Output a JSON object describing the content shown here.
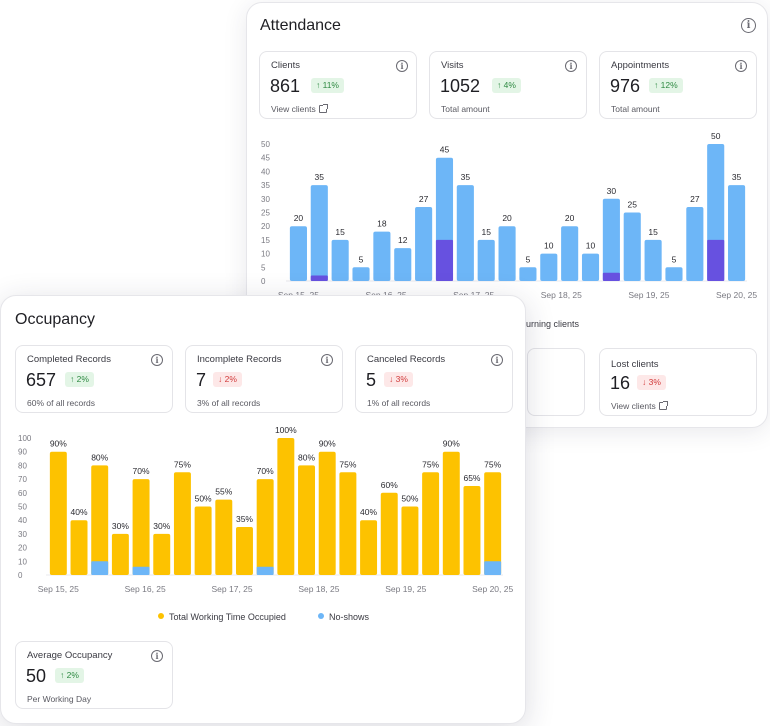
{
  "colors": {
    "attendance_bar": "#6db6f7",
    "attendance_highlight": "#6751e0",
    "occupancy_bar": "#fdc200",
    "noshow_bar": "#6db6f7",
    "badge_up": "#2f8a43",
    "badge_down": "#d23c3c"
  },
  "attendance": {
    "title": "Attendance",
    "cards": [
      {
        "label": "Clients",
        "value": "861",
        "badge": "↑ 11%",
        "sub": "View clients"
      },
      {
        "label": "Visits",
        "value": "1052",
        "badge": "↑ 4%",
        "sub": "Total amount"
      },
      {
        "label": "Appointments",
        "value": "976",
        "badge": "↑ 12%",
        "sub": "Total amount"
      }
    ],
    "legend_partial": "urning clients",
    "lost_card": {
      "label": "Lost clients",
      "value": "16",
      "badge": "↓ 3%",
      "sub": "View clients"
    }
  },
  "occupancy": {
    "title": "Occupancy",
    "cards": [
      {
        "label": "Completed Records",
        "value": "657",
        "badge": "↑ 2%",
        "sub": "60% of all records"
      },
      {
        "label": "Incomplete Records",
        "value": "7",
        "badge": "↓ 2%",
        "sub": "3% of all records"
      },
      {
        "label": "Canceled Records",
        "value": "5",
        "badge": "↓ 3%",
        "sub": "1% of all records"
      }
    ],
    "legend": [
      {
        "label": "Total Working Time Occupied"
      },
      {
        "label": "No-shows"
      }
    ],
    "avg_card": {
      "label": "Average Occupancy",
      "value": "50",
      "badge": "↑ 2%",
      "sub": "Per Working Day"
    }
  },
  "chart_data": [
    {
      "type": "bar",
      "name": "attendance",
      "ylim": [
        0,
        50
      ],
      "yticks": [
        0,
        5,
        10,
        15,
        20,
        25,
        30,
        35,
        40,
        45,
        50
      ],
      "xticks": [
        "Sep 15, 25",
        "Sep 16, 25",
        "Sep 17, 25",
        "Sep 18, 25",
        "Sep 19, 25",
        "Sep 20, 25"
      ],
      "values": [
        20,
        35,
        15,
        5,
        18,
        12,
        27,
        45,
        35,
        15,
        20,
        5,
        10,
        20,
        10,
        30,
        25,
        15,
        5,
        27,
        50,
        35
      ],
      "highlight": [
        0,
        2,
        0,
        0,
        0,
        0,
        0,
        15,
        0,
        0,
        0,
        0,
        0,
        0,
        0,
        3,
        0,
        0,
        0,
        0,
        15,
        0
      ],
      "labels": [
        "20",
        "35",
        "15",
        "5",
        "18",
        "12",
        "27",
        "45",
        "35",
        "15",
        "20",
        "5",
        "10",
        "20",
        "10",
        "30",
        "25",
        "15",
        "5",
        "27",
        "50",
        "35"
      ]
    },
    {
      "type": "bar",
      "name": "occupancy",
      "ylim": [
        0,
        100
      ],
      "yticks": [
        0,
        10,
        20,
        30,
        40,
        50,
        60,
        70,
        80,
        90,
        100
      ],
      "xticks": [
        "Sep 15, 25",
        "Sep 16, 25",
        "Sep 17, 25",
        "Sep 18, 25",
        "Sep 19, 25",
        "Sep 20, 25"
      ],
      "values": [
        90,
        40,
        80,
        30,
        70,
        30,
        75,
        50,
        55,
        35,
        70,
        100,
        80,
        90,
        75,
        40,
        60,
        50,
        75,
        90,
        65,
        75
      ],
      "noshows": [
        0,
        0,
        10,
        0,
        6,
        0,
        0,
        0,
        0,
        0,
        6,
        0,
        0,
        0,
        0,
        0,
        0,
        0,
        0,
        0,
        0,
        10
      ],
      "labels": [
        "90%",
        "40%",
        "80%",
        "30%",
        "70%",
        "30%",
        "75%",
        "50%",
        "55%",
        "35%",
        "70%",
        "100%",
        "80%",
        "90%",
        "75%",
        "40%",
        "60%",
        "50%",
        "75%",
        "90%",
        "65%",
        "75%"
      ]
    }
  ]
}
